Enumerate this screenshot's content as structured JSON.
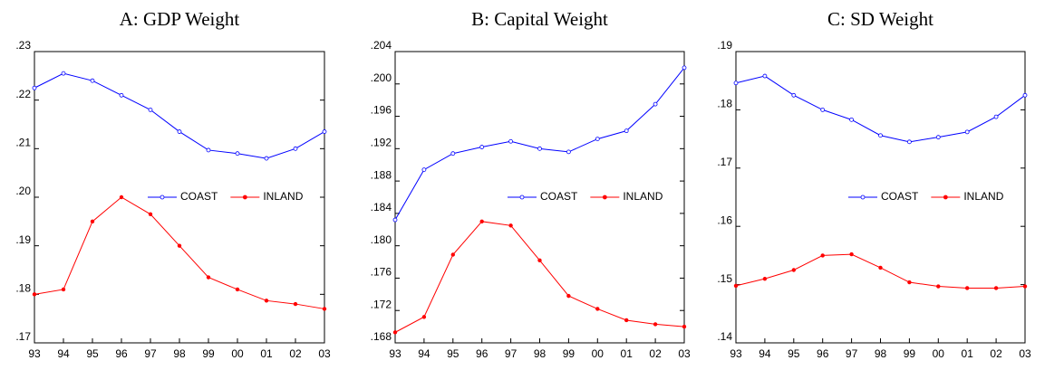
{
  "chart_data": [
    {
      "type": "line",
      "title": "A: GDP Weight",
      "categories": [
        "93",
        "94",
        "95",
        "96",
        "97",
        "98",
        "99",
        "00",
        "01",
        "02",
        "03"
      ],
      "series": [
        {
          "name": "COAST",
          "color": "#0000ff",
          "marker": "open",
          "values": [
            0.2225,
            0.2255,
            0.224,
            0.221,
            0.218,
            0.2135,
            0.2097,
            0.209,
            0.208,
            0.21,
            0.2135
          ]
        },
        {
          "name": "INLAND",
          "color": "#ff0000",
          "marker": "filled",
          "values": [
            0.18,
            0.181,
            0.195,
            0.2,
            0.1965,
            0.19,
            0.1835,
            0.181,
            0.1787,
            0.178,
            0.177
          ]
        }
      ],
      "ylim": [
        0.17,
        0.23
      ],
      "yticks": [
        {
          "value": 0.17,
          "label": ".17"
        },
        {
          "value": 0.18,
          "label": ".18"
        },
        {
          "value": 0.19,
          "label": ".19"
        },
        {
          "value": 0.2,
          "label": ".20"
        },
        {
          "value": 0.21,
          "label": ".21"
        },
        {
          "value": 0.22,
          "label": ".22"
        },
        {
          "value": 0.23,
          "label": ".23"
        }
      ],
      "legend": "center-right",
      "grid": false
    },
    {
      "type": "line",
      "title": "B: Capital Weight",
      "categories": [
        "93",
        "94",
        "95",
        "96",
        "97",
        "98",
        "99",
        "00",
        "01",
        "02",
        "03"
      ],
      "series": [
        {
          "name": "COAST",
          "color": "#0000ff",
          "marker": "open",
          "values": [
            0.1832,
            0.1894,
            0.1914,
            0.1922,
            0.1929,
            0.192,
            0.1916,
            0.1932,
            0.1942,
            0.1975,
            0.202
          ]
        },
        {
          "name": "INLAND",
          "color": "#ff0000",
          "marker": "filled",
          "values": [
            0.1693,
            0.1712,
            0.1789,
            0.183,
            0.1825,
            0.1782,
            0.1738,
            0.1722,
            0.1708,
            0.1703,
            0.17
          ]
        }
      ],
      "ylim": [
        0.168,
        0.204
      ],
      "yticks": [
        {
          "value": 0.168,
          "label": ".168"
        },
        {
          "value": 0.172,
          "label": ".172"
        },
        {
          "value": 0.176,
          "label": ".176"
        },
        {
          "value": 0.18,
          "label": ".180"
        },
        {
          "value": 0.184,
          "label": ".184"
        },
        {
          "value": 0.188,
          "label": ".188"
        },
        {
          "value": 0.192,
          "label": ".192"
        },
        {
          "value": 0.196,
          "label": ".196"
        },
        {
          "value": 0.2,
          "label": ".200"
        },
        {
          "value": 0.204,
          "label": ".204"
        }
      ],
      "legend": "center-right",
      "grid": false
    },
    {
      "type": "line",
      "title": "C: SD Weight",
      "categories": [
        "93",
        "94",
        "95",
        "96",
        "97",
        "98",
        "99",
        "00",
        "01",
        "02",
        "03"
      ],
      "series": [
        {
          "name": "COAST",
          "color": "#0000ff",
          "marker": "open",
          "values": [
            0.1846,
            0.1858,
            0.1825,
            0.18,
            0.1783,
            0.1756,
            0.1745,
            0.1753,
            0.1762,
            0.1788,
            0.1825
          ]
        },
        {
          "name": "INLAND",
          "color": "#ff0000",
          "marker": "filled",
          "values": [
            0.1498,
            0.151,
            0.1525,
            0.155,
            0.1552,
            0.1529,
            0.1504,
            0.1497,
            0.1494,
            0.1494,
            0.1497
          ]
        }
      ],
      "ylim": [
        0.14,
        0.19
      ],
      "yticks": [
        {
          "value": 0.14,
          "label": ".14"
        },
        {
          "value": 0.15,
          "label": ".15"
        },
        {
          "value": 0.16,
          "label": ".16"
        },
        {
          "value": 0.17,
          "label": ".17"
        },
        {
          "value": 0.18,
          "label": ".18"
        },
        {
          "value": 0.19,
          "label": ".19"
        }
      ],
      "legend": "center-right",
      "grid": false
    }
  ]
}
